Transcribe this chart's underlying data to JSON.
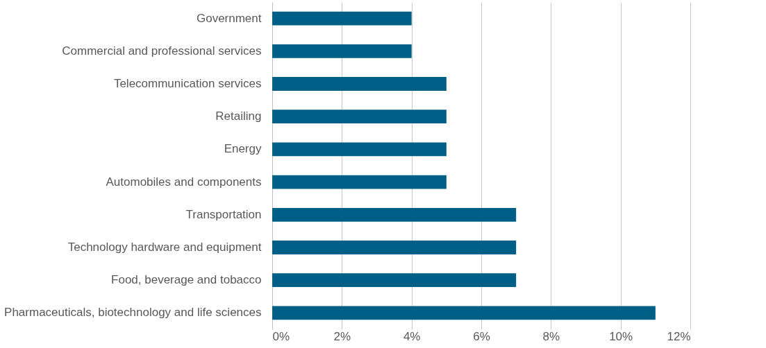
{
  "chart_data": {
    "type": "bar",
    "orientation": "horizontal",
    "categories": [
      "Government",
      "Commercial and professional services",
      "Telecommunication services",
      "Retailing",
      "Energy",
      "Automobiles and components",
      "Transportation",
      "Technology hardware and equipment",
      "Food, beverage and tobacco",
      "Pharmaceuticals, biotechnology and life sciences"
    ],
    "values": [
      4,
      4,
      5,
      5,
      5,
      5,
      7,
      7,
      7,
      11
    ],
    "color": "#005f86",
    "xlim": [
      0,
      12
    ],
    "xticks": [
      {
        "value": 0,
        "label": "0%"
      },
      {
        "value": 2,
        "label": "2%"
      },
      {
        "value": 4,
        "label": "4%"
      },
      {
        "value": 6,
        "label": "6%"
      },
      {
        "value": 8,
        "label": "8%"
      },
      {
        "value": 10,
        "label": "10%"
      },
      {
        "value": 12,
        "label": "12%"
      }
    ],
    "grid": "x"
  }
}
